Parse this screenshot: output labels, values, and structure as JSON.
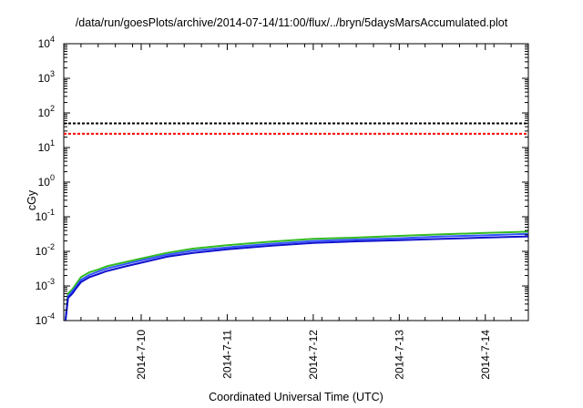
{
  "chart_data": {
    "type": "line",
    "title": "/data/run/goesPlots/archive/2014-07-14/11:00/flux/../bryn/5daysMarsAccumulated.plot",
    "xlabel": "Coordinated Universal Time (UTC)",
    "ylabel": "cGy",
    "yscale": "log",
    "ylim": [
      0.0001,
      10000
    ],
    "xlim_days": [
      0,
      5.4
    ],
    "y_ticks": [
      {
        "base": "10",
        "exp": "-4",
        "value": 0.0001
      },
      {
        "base": "10",
        "exp": "-3",
        "value": 0.001
      },
      {
        "base": "10",
        "exp": "-2",
        "value": 0.01
      },
      {
        "base": "10",
        "exp": "-1",
        "value": 0.1
      },
      {
        "base": "10",
        "exp": "0",
        "value": 1
      },
      {
        "base": "10",
        "exp": "1",
        "value": 10
      },
      {
        "base": "10",
        "exp": "2",
        "value": 100
      },
      {
        "base": "10",
        "exp": "3",
        "value": 1000
      },
      {
        "base": "10",
        "exp": "4",
        "value": 10000
      }
    ],
    "x_ticks": [
      {
        "label": "2014-7-10",
        "x": 0.9
      },
      {
        "label": "2014-7-11",
        "x": 1.9
      },
      {
        "label": "2014-7-12",
        "x": 2.9
      },
      {
        "label": "2014-7-13",
        "x": 3.9
      },
      {
        "label": "2014-7-14",
        "x": 4.9
      }
    ],
    "reference_lines": [
      {
        "value": 50,
        "color": "#000000",
        "style": "dashed"
      },
      {
        "value": 25,
        "color": "#ff0000",
        "style": "dashed"
      }
    ],
    "x": [
      0.02,
      0.05,
      0.1,
      0.15,
      0.2,
      0.3,
      0.4,
      0.5,
      0.7,
      0.9,
      1.2,
      1.5,
      1.9,
      2.4,
      2.9,
      3.4,
      3.9,
      4.4,
      4.9,
      5.4
    ],
    "series": [
      {
        "color": "#33bb22",
        "values": [
          0.0001,
          0.0006,
          0.0008,
          0.0012,
          0.0018,
          0.0025,
          0.003,
          0.0037,
          0.0048,
          0.0062,
          0.009,
          0.012,
          0.015,
          0.019,
          0.023,
          0.025,
          0.028,
          0.031,
          0.034,
          0.037
        ]
      },
      {
        "color": "#3355ff",
        "values": [
          0.0001,
          0.0005,
          0.0007,
          0.001,
          0.0015,
          0.0021,
          0.0026,
          0.0032,
          0.0042,
          0.0055,
          0.008,
          0.0105,
          0.013,
          0.0165,
          0.02,
          0.022,
          0.024,
          0.027,
          0.029,
          0.032
        ]
      },
      {
        "color": "#1111cc",
        "values": [
          0.0001,
          0.00045,
          0.0006,
          0.0009,
          0.0013,
          0.0018,
          0.0022,
          0.0027,
          0.0036,
          0.0047,
          0.007,
          0.009,
          0.0115,
          0.0145,
          0.0175,
          0.0195,
          0.021,
          0.023,
          0.025,
          0.027
        ]
      }
    ]
  }
}
